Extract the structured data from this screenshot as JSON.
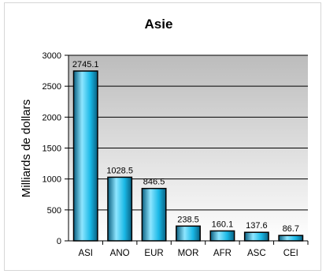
{
  "chart_data": {
    "type": "bar",
    "title": "Asie",
    "xlabel": "",
    "ylabel": "Milliards de dollars",
    "ylim": [
      0,
      3000
    ],
    "yticks": [
      0,
      500,
      1000,
      1500,
      2000,
      2500,
      3000
    ],
    "categories": [
      "ASI",
      "ANO",
      "EUR",
      "MOR",
      "AFR",
      "ASC",
      "CEI"
    ],
    "values": [
      2745.1,
      1028.5,
      846.5,
      238.5,
      160.1,
      137.6,
      86.7
    ],
    "value_labels": [
      "2745.1",
      "1028.5",
      "846.5",
      "238.5",
      "160.1",
      "137.6",
      "86.7"
    ],
    "grid": true,
    "legend": "none",
    "colors": {
      "bar_light": "#8ee6ff",
      "bar_mid": "#19b8e6",
      "bar_dark": "#0a5f80",
      "bar_edge": "#000000",
      "grid": "#000000",
      "plot_background": "#c8c8c8"
    }
  }
}
